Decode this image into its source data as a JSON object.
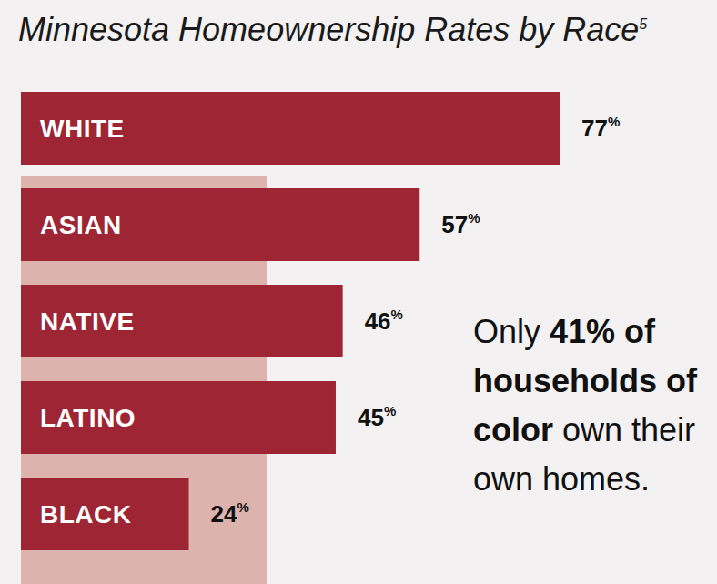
{
  "chart_data": {
    "type": "bar",
    "orientation": "horizontal",
    "title": "Minnesota Homeownership Rates by Race",
    "title_note": "5",
    "categories": [
      "WHITE",
      "ASIAN",
      "NATIVE",
      "LATINO",
      "BLACK"
    ],
    "values": [
      77,
      57,
      46,
      45,
      24
    ],
    "value_labels": [
      "77%",
      "57%",
      "46%",
      "45%",
      "24%"
    ],
    "color": "#9e2533",
    "data_labels": true,
    "tick_labels": false,
    "annotation": [
      "Only ",
      "41% of households of color",
      " own their own homes."
    ]
  }
}
